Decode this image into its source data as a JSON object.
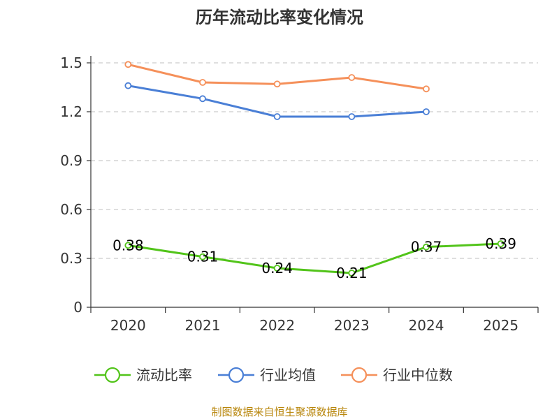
{
  "chart_data": {
    "type": "line",
    "title": "历年流动比率变化情况",
    "categories": [
      "2020",
      "2021",
      "2022",
      "2023",
      "2024",
      "2025"
    ],
    "ylim": [
      0,
      1.5
    ],
    "yticks": [
      0,
      0.3,
      0.6,
      0.9,
      1.2,
      1.5
    ],
    "ytick_labels": [
      "0",
      "0.3",
      "0.6",
      "0.9",
      "1.2",
      "1.5"
    ],
    "grid": true,
    "legend_position": "bottom",
    "series": [
      {
        "name": "流动比率",
        "color": "#52c41a",
        "values": [
          0.38,
          0.31,
          0.24,
          0.21,
          0.37,
          0.39
        ],
        "labels": [
          "0.38",
          "0.31",
          "0.24",
          "0.21",
          "0.37",
          "0.39"
        ],
        "show_labels": true
      },
      {
        "name": "行业均值",
        "color": "#4a7fd6",
        "values": [
          1.36,
          1.28,
          1.17,
          1.17,
          1.2,
          null
        ],
        "show_labels": false
      },
      {
        "name": "行业中位数",
        "color": "#f5905a",
        "values": [
          1.49,
          1.38,
          1.37,
          1.41,
          1.34,
          null
        ],
        "show_labels": false
      }
    ]
  },
  "source_text": "制图数据来自恒生聚源数据库"
}
